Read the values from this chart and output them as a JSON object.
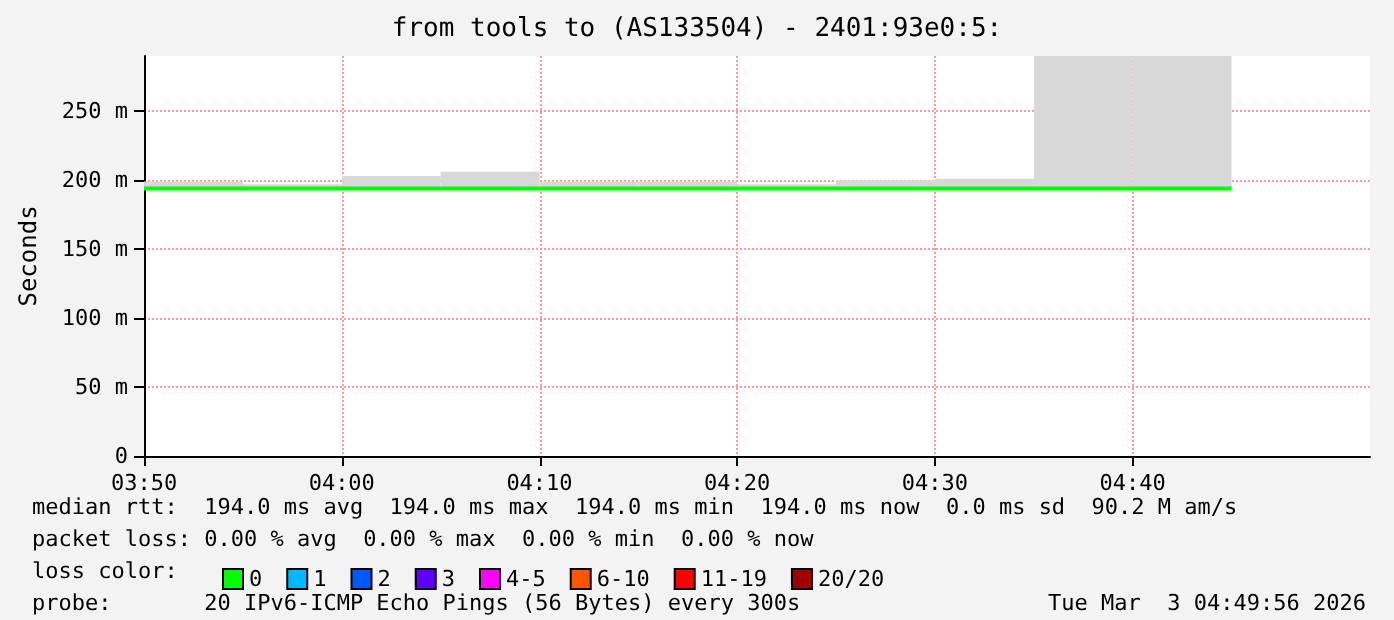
{
  "chart_data": {
    "type": "step",
    "title": "from tools to (AS133504) - 2401:93e0:5:",
    "ylabel": "Seconds",
    "legend_title": "loss color:",
    "x": [
      "2026-03-03T03:50",
      "2026-03-03T03:55",
      "2026-03-03T04:00",
      "2026-03-03T04:05",
      "2026-03-03T04:10",
      "2026-03-03T04:15",
      "2026-03-03T04:20",
      "2026-03-03T04:25",
      "2026-03-03T04:30",
      "2026-03-03T04:35",
      "2026-03-03T04:40",
      "2026-03-03T04:45"
    ],
    "xlim": [
      "2026-03-03T03:50",
      "2026-03-03T04:52"
    ],
    "xticks": [
      {
        "value": "2026-03-03T03:50",
        "label": "03:50"
      },
      {
        "value": "2026-03-03T04:00",
        "label": "04:00"
      },
      {
        "value": "2026-03-03T04:10",
        "label": "04:10"
      },
      {
        "value": "2026-03-03T04:20",
        "label": "04:20"
      },
      {
        "value": "2026-03-03T04:30",
        "label": "04:30"
      },
      {
        "value": "2026-03-03T04:40",
        "label": "04:40"
      }
    ],
    "ylim": [
      0,
      290
    ],
    "yticks": [
      0,
      {
        "value": 50,
        "label": "50 m"
      },
      {
        "value": 100,
        "label": "100 m"
      },
      {
        "value": 150,
        "label": "150 m"
      },
      {
        "value": 200,
        "label": "200 m"
      },
      {
        "value": 250,
        "label": "250 m"
      }
    ],
    "series": [
      {
        "name": "0",
        "color": "#00ff00",
        "values": [
          194,
          194,
          194,
          194,
          194,
          194,
          194,
          194,
          194,
          194,
          194,
          194
        ],
        "lower": [
          193,
          193,
          193,
          193,
          193,
          193,
          193,
          193,
          193,
          193,
          193,
          193
        ],
        "upper": [
          199,
          197,
          203,
          206,
          199,
          199,
          197,
          200,
          201,
          290,
          290,
          290
        ]
      },
      {
        "name": "1",
        "color": "#00b8ff",
        "values": [
          null,
          null,
          null,
          null,
          null,
          null,
          null,
          null,
          null,
          null,
          null,
          null
        ]
      },
      {
        "name": "2",
        "color": "#0059ff",
        "values": [
          null,
          null,
          null,
          null,
          null,
          null,
          null,
          null,
          null,
          null,
          null,
          null
        ]
      },
      {
        "name": "3",
        "color": "#5e00ff",
        "values": [
          null,
          null,
          null,
          null,
          null,
          null,
          null,
          null,
          null,
          null,
          null,
          null
        ]
      },
      {
        "name": "4-5",
        "color": "#ff00ff",
        "values": [
          null,
          null,
          null,
          null,
          null,
          null,
          null,
          null,
          null,
          null,
          null,
          null
        ]
      },
      {
        "name": "6-10",
        "color": "#ff5500",
        "values": [
          null,
          null,
          null,
          null,
          null,
          null,
          null,
          null,
          null,
          null,
          null,
          null
        ]
      },
      {
        "name": "11-19",
        "color": "#ff0000",
        "values": [
          null,
          null,
          null,
          null,
          null,
          null,
          null,
          null,
          null,
          null,
          null,
          null
        ]
      },
      {
        "name": "20/20",
        "color": "#a10000",
        "values": [
          null,
          null,
          null,
          null,
          null,
          null,
          null,
          null,
          null,
          null,
          null,
          null
        ]
      }
    ],
    "grid": true,
    "legend": "bottom",
    "annotations": [
      "median rtt:  194.0 ms avg  194.0 ms max  194.0 ms min  194.0 ms now  0.0 ms sd  90.2 M am/s",
      "packet loss: 0.00 % avg  0.00 % max  0.00 % min  0.00 % now",
      "probe:       20 IPv6-ICMP Echo Pings (56 Bytes) every 300s",
      "Tue Mar  3 04:49:56 2026"
    ]
  }
}
